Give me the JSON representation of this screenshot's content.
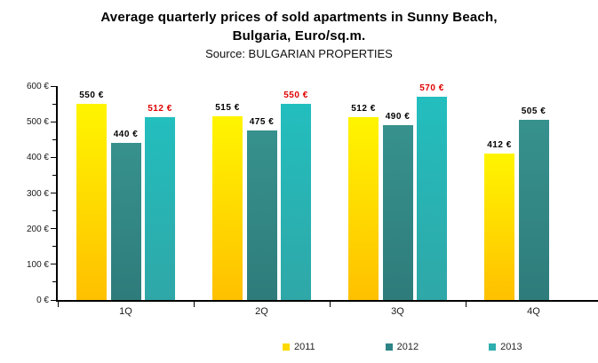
{
  "chart_data": {
    "type": "bar",
    "title_line1": "Average quarterly prices of sold apartments in Sunny Beach,",
    "title_line2": "Bulgaria, Euro/sq.m.",
    "source": "Source: BULGARIAN PROPERTIES",
    "categories": [
      "1Q",
      "2Q",
      "3Q",
      "4Q"
    ],
    "series": [
      {
        "name": "2011",
        "values": [
          550,
          515,
          512,
          412
        ],
        "color_top": "#FFF500",
        "color_bottom": "#FFC000",
        "legend_color": "#FFD900",
        "label_color": "#000000"
      },
      {
        "name": "2012",
        "values": [
          440,
          475,
          490,
          505
        ],
        "color_top": "#37918D",
        "color_bottom": "#2E7C7B",
        "legend_color": "#2E8486",
        "label_color": "#000000"
      },
      {
        "name": "2013",
        "values": [
          512,
          550,
          570,
          null
        ],
        "color_top": "#23BEBE",
        "color_bottom": "#2FA7A7",
        "legend_color": "#2FAEAE",
        "label_color": "#E00000"
      }
    ],
    "xlabel": "",
    "ylabel": "",
    "ylim": [
      0,
      600
    ],
    "y_major_step": 100,
    "y_minor_step": 50,
    "tick_suffix": " €",
    "value_suffix": " €",
    "grid": false,
    "legend_position": "bottom",
    "axis_color": "#000000",
    "background_color": "#FFFFFF"
  }
}
